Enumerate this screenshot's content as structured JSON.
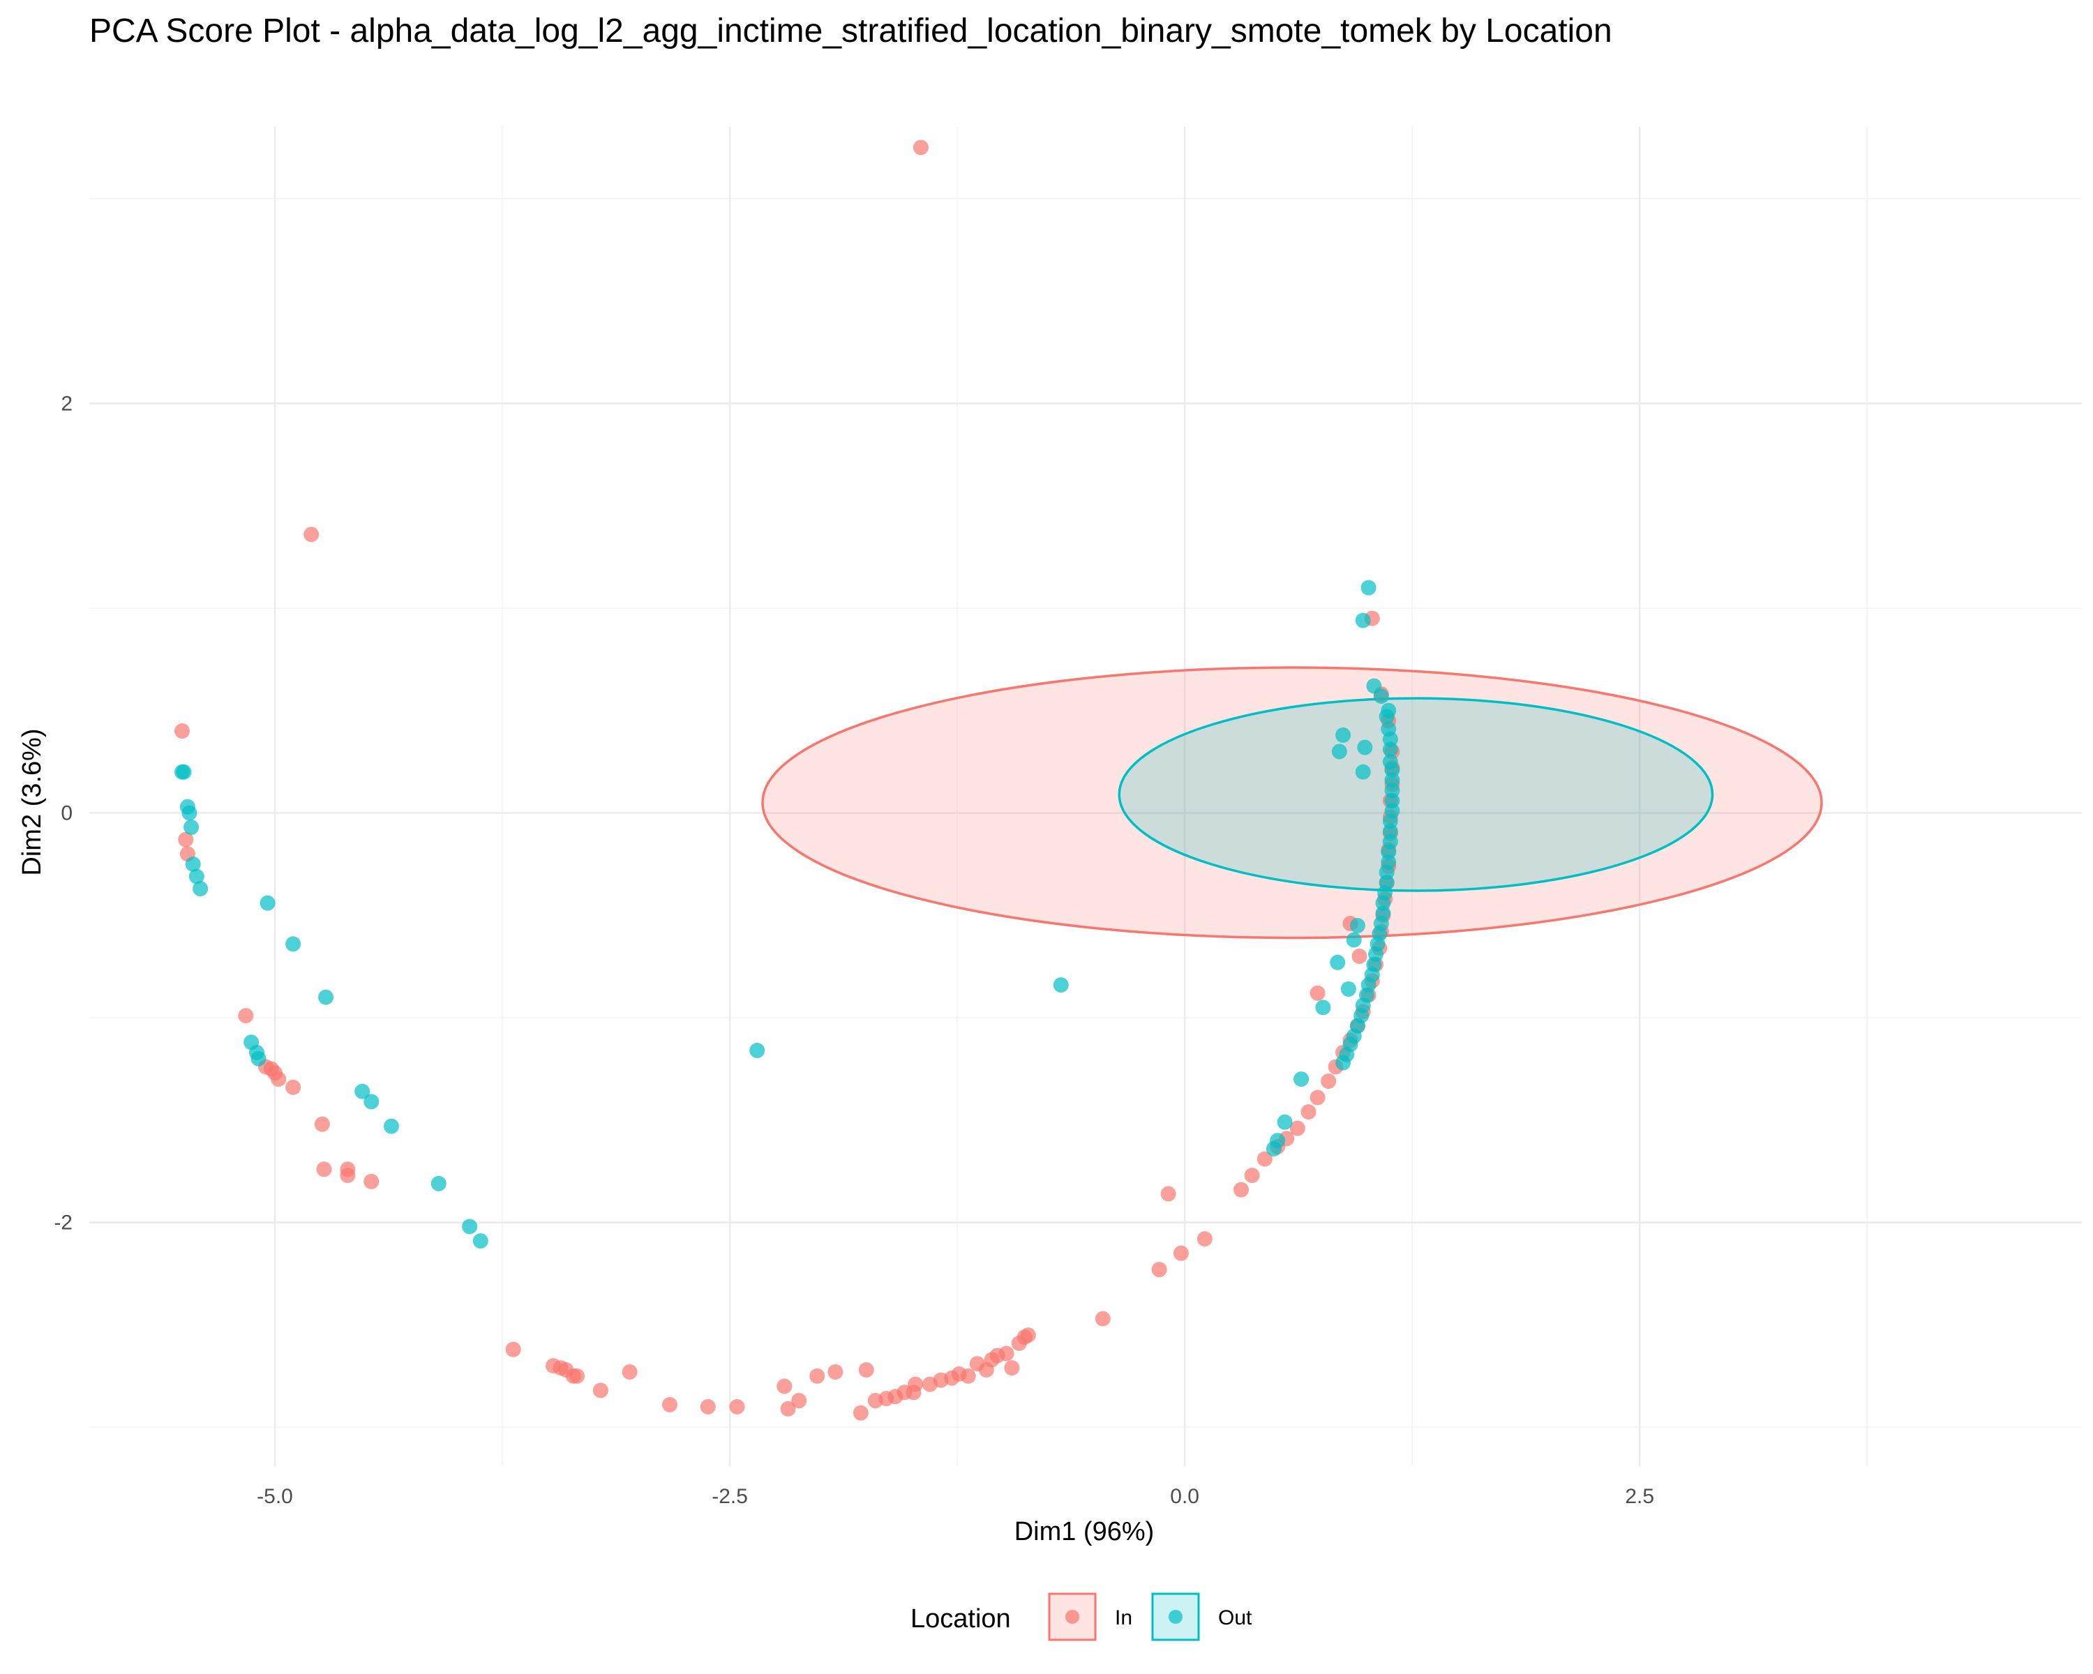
{
  "chart_data": {
    "type": "scatter",
    "title": "PCA Score Plot - alpha_data_log_l2_agg_inctime_stratified_location_binary_smote_tomek by Location",
    "xlabel": "Dim1 (96%)",
    "ylabel": "Dim2 (3.6%)",
    "xlim": [
      -6.02,
      4.93
    ],
    "ylim": [
      -3.19,
      3.35
    ],
    "x_ticks": [
      -5.0,
      -2.5,
      0.0,
      2.5
    ],
    "x_tick_labels": [
      "-5.0",
      "-2.5",
      "0.0",
      "2.5"
    ],
    "y_ticks": [
      -2,
      0,
      2
    ],
    "y_tick_labels": [
      "-2",
      "0",
      "2"
    ],
    "grid": true,
    "legend": {
      "title": "Location",
      "position": "bottom"
    },
    "series": [
      {
        "name": "In",
        "color": "#F8766D",
        "ellipse": {
          "cx": 0.59,
          "cy": 0.05,
          "rx": 2.91,
          "ry": 0.66
        },
        "points": [
          [
            -1.45,
            3.25
          ],
          [
            -4.8,
            1.36
          ],
          [
            1.03,
            0.95
          ],
          [
            -5.51,
            0.4
          ],
          [
            -5.49,
            -0.13
          ],
          [
            -5.48,
            -0.2
          ],
          [
            -5.16,
            -0.99
          ],
          [
            -5.05,
            -1.24
          ],
          [
            -5.02,
            -1.25
          ],
          [
            -5.0,
            -1.27
          ],
          [
            -4.98,
            -1.3
          ],
          [
            -4.9,
            -1.34
          ],
          [
            -4.74,
            -1.52
          ],
          [
            -4.73,
            -1.74
          ],
          [
            -4.6,
            -1.74
          ],
          [
            -4.6,
            -1.77
          ],
          [
            -4.47,
            -1.8
          ],
          [
            -3.69,
            -2.62
          ],
          [
            -3.47,
            -2.7
          ],
          [
            -3.43,
            -2.71
          ],
          [
            -3.4,
            -2.72
          ],
          [
            -3.36,
            -2.75
          ],
          [
            -3.34,
            -2.75
          ],
          [
            -3.21,
            -2.82
          ],
          [
            -3.05,
            -2.73
          ],
          [
            -2.83,
            -2.89
          ],
          [
            -2.62,
            -2.9
          ],
          [
            -2.46,
            -2.9
          ],
          [
            -2.2,
            -2.8
          ],
          [
            -2.18,
            -2.91
          ],
          [
            -2.12,
            -2.87
          ],
          [
            -2.02,
            -2.75
          ],
          [
            -1.92,
            -2.73
          ],
          [
            -1.78,
            -2.93
          ],
          [
            -1.75,
            -2.72
          ],
          [
            -1.7,
            -2.87
          ],
          [
            -1.64,
            -2.86
          ],
          [
            -1.59,
            -2.85
          ],
          [
            -1.54,
            -2.83
          ],
          [
            -1.49,
            -2.83
          ],
          [
            -1.48,
            -2.79
          ],
          [
            -1.4,
            -2.79
          ],
          [
            -1.34,
            -2.77
          ],
          [
            -1.28,
            -2.76
          ],
          [
            -1.24,
            -2.74
          ],
          [
            -1.19,
            -2.75
          ],
          [
            -1.14,
            -2.69
          ],
          [
            -1.09,
            -2.72
          ],
          [
            -1.06,
            -2.67
          ],
          [
            -1.03,
            -2.65
          ],
          [
            -0.98,
            -2.64
          ],
          [
            -0.95,
            -2.71
          ],
          [
            -0.91,
            -2.59
          ],
          [
            -0.88,
            -2.56
          ],
          [
            -0.86,
            -2.55
          ],
          [
            -0.45,
            -2.47
          ],
          [
            -0.14,
            -2.23
          ],
          [
            -0.09,
            -1.86
          ],
          [
            -0.02,
            -2.15
          ],
          [
            0.11,
            -2.08
          ],
          [
            0.31,
            -1.84
          ],
          [
            0.37,
            -1.77
          ],
          [
            0.44,
            -1.69
          ],
          [
            0.51,
            -1.63
          ],
          [
            0.56,
            -1.59
          ],
          [
            0.62,
            -1.54
          ],
          [
            0.68,
            -1.46
          ],
          [
            0.73,
            -1.39
          ],
          [
            0.79,
            -1.31
          ],
          [
            0.83,
            -1.24
          ],
          [
            0.87,
            -1.17
          ],
          [
            0.91,
            -1.11
          ],
          [
            0.95,
            -1.04
          ],
          [
            0.98,
            -0.97
          ],
          [
            1.01,
            -0.89
          ],
          [
            1.03,
            -0.82
          ],
          [
            1.05,
            -0.74
          ],
          [
            1.07,
            -0.66
          ],
          [
            1.08,
            -0.58
          ],
          [
            1.09,
            -0.5
          ],
          [
            1.1,
            -0.42
          ],
          [
            1.11,
            -0.34
          ],
          [
            1.12,
            -0.26
          ],
          [
            1.12,
            -0.18
          ],
          [
            1.13,
            -0.1
          ],
          [
            1.13,
            -0.02
          ],
          [
            1.13,
            0.06
          ],
          [
            1.14,
            0.14
          ],
          [
            1.14,
            0.22
          ],
          [
            1.14,
            0.3
          ],
          [
            1.12,
            0.45
          ],
          [
            1.08,
            0.58
          ],
          [
            0.73,
            -0.88
          ],
          [
            0.91,
            -0.54
          ],
          [
            0.96,
            -0.7
          ]
        ]
      },
      {
        "name": "Out",
        "color": "#00BFC4",
        "ellipse": {
          "cx": 1.27,
          "cy": 0.09,
          "rx": 1.63,
          "ry": 0.47
        },
        "points": [
          [
            1.01,
            1.1
          ],
          [
            0.98,
            0.94
          ],
          [
            1.04,
            0.62
          ],
          [
            1.08,
            0.57
          ],
          [
            1.12,
            0.5
          ],
          [
            1.11,
            0.47
          ],
          [
            1.12,
            0.41
          ],
          [
            1.13,
            0.36
          ],
          [
            1.13,
            0.31
          ],
          [
            1.13,
            0.25
          ],
          [
            1.14,
            0.21
          ],
          [
            1.14,
            0.16
          ],
          [
            1.14,
            0.11
          ],
          [
            1.14,
            0.06
          ],
          [
            1.14,
            0.01
          ],
          [
            1.13,
            -0.04
          ],
          [
            1.13,
            -0.09
          ],
          [
            1.13,
            -0.14
          ],
          [
            1.12,
            -0.19
          ],
          [
            1.12,
            -0.24
          ],
          [
            1.11,
            -0.29
          ],
          [
            1.11,
            -0.34
          ],
          [
            1.1,
            -0.39
          ],
          [
            1.09,
            -0.44
          ],
          [
            1.09,
            -0.49
          ],
          [
            1.08,
            -0.54
          ],
          [
            1.07,
            -0.59
          ],
          [
            1.06,
            -0.64
          ],
          [
            1.05,
            -0.69
          ],
          [
            1.04,
            -0.74
          ],
          [
            1.03,
            -0.79
          ],
          [
            1.01,
            -0.84
          ],
          [
            1.0,
            -0.89
          ],
          [
            0.98,
            -0.94
          ],
          [
            0.97,
            -0.99
          ],
          [
            0.95,
            -1.04
          ],
          [
            0.93,
            -1.09
          ],
          [
            0.91,
            -1.13
          ],
          [
            0.89,
            -1.18
          ],
          [
            0.87,
            -1.22
          ],
          [
            0.85,
            0.3
          ],
          [
            0.87,
            0.38
          ],
          [
            0.99,
            0.32
          ],
          [
            0.98,
            0.2
          ],
          [
            0.84,
            -0.73
          ],
          [
            0.76,
            -0.95
          ],
          [
            0.64,
            -1.3
          ],
          [
            0.55,
            -1.51
          ],
          [
            0.51,
            -1.6
          ],
          [
            0.49,
            -1.64
          ],
          [
            0.93,
            -0.62
          ],
          [
            0.95,
            -0.55
          ],
          [
            0.9,
            -0.86
          ],
          [
            -0.68,
            -0.84
          ],
          [
            -2.35,
            -1.16
          ],
          [
            -5.51,
            0.2
          ],
          [
            -5.5,
            0.2
          ],
          [
            -5.48,
            0.03
          ],
          [
            -5.47,
            0.0
          ],
          [
            -5.46,
            -0.07
          ],
          [
            -5.45,
            -0.25
          ],
          [
            -5.43,
            -0.31
          ],
          [
            -5.41,
            -0.37
          ],
          [
            -5.04,
            -0.44
          ],
          [
            -4.9,
            -0.64
          ],
          [
            -4.72,
            -0.9
          ],
          [
            -5.13,
            -1.12
          ],
          [
            -5.1,
            -1.17
          ],
          [
            -5.09,
            -1.2
          ],
          [
            -4.52,
            -1.36
          ],
          [
            -4.47,
            -1.41
          ],
          [
            -4.36,
            -1.53
          ],
          [
            -4.1,
            -1.81
          ],
          [
            -3.93,
            -2.02
          ],
          [
            -3.87,
            -2.09
          ]
        ]
      }
    ]
  }
}
